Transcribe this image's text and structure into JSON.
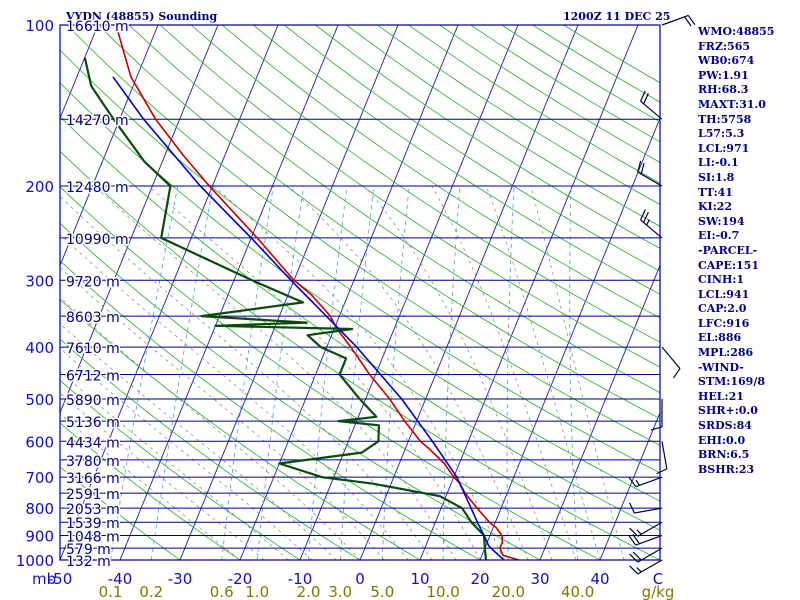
{
  "header": {
    "station": "VYDN (48855) Sounding",
    "time": "1200Z 11 DEC 25"
  },
  "indices": [
    "WMO:48855",
    "FRZ:565",
    "WB0:674",
    "PW:1.91",
    "RH:68.3",
    "MAXT:31.0",
    "TH:5758",
    "L57:5.3",
    "LCL:971",
    "LI:-0.1",
    "SI:1.8",
    "TT:41",
    "KI:22",
    "SW:194",
    "EI:-0.7",
    "-PARCEL-",
    "CAPE:151",
    "CINH:1",
    "LCL:941",
    "CAP:2.0",
    "LFC:916",
    "EL:886",
    "MPL:286",
    "-WIND-",
    "STM:169/8",
    "HEL:21",
    "SHR+:0.0",
    "SRDS:84",
    "EHI:0.0",
    "BRN:6.5",
    "BSHR:23"
  ],
  "chart_data": {
    "type": "line",
    "title": "VYDN (48855) Sounding",
    "subtitle": "1200Z 11 DEC 25",
    "xlabel": "",
    "ylabel": "mb",
    "ylim": [
      1000,
      100
    ],
    "y_scale": "log",
    "xlim": [
      -50,
      50
    ],
    "pressure_ticks": [
      100,
      200,
      300,
      400,
      500,
      600,
      700,
      800,
      900,
      1000
    ],
    "temperature_ticks": [
      "-50",
      "-40",
      "-30",
      "-20",
      "-10",
      "0",
      "10",
      "20",
      "30",
      "40",
      "C"
    ],
    "temperature_tick_values": [
      -50,
      -40,
      -30,
      -20,
      -10,
      0,
      10,
      20,
      30,
      40
    ],
    "mixing_ratio_labels": [
      "0.1",
      "0.2",
      "0.6",
      "1.0",
      "2.0",
      "3.0",
      "5.0",
      "10.0",
      "20.0",
      "40.0",
      "g/kg"
    ],
    "mixing_ratio_values": [
      0.1,
      0.2,
      0.6,
      1.0,
      2.0,
      3.0,
      5.0,
      10.0,
      20.0,
      40.0
    ],
    "height_labels": [
      {
        "p": 100,
        "text": "16610 m"
      },
      {
        "p": 150,
        "text": "14270 m"
      },
      {
        "p": 200,
        "text": "12480 m"
      },
      {
        "p": 250,
        "text": "10990 m"
      },
      {
        "p": 300,
        "text": "9720 m"
      },
      {
        "p": 350,
        "text": "8603 m"
      },
      {
        "p": 400,
        "text": "7610 m"
      },
      {
        "p": 450,
        "text": "6712 m"
      },
      {
        "p": 500,
        "text": "5890 m"
      },
      {
        "p": 550,
        "text": "5136 m"
      },
      {
        "p": 600,
        "text": "4434 m"
      },
      {
        "p": 650,
        "text": "3780 m"
      },
      {
        "p": 700,
        "text": "3166 m"
      },
      {
        "p": 750,
        "text": "2591 m"
      },
      {
        "p": 800,
        "text": "2053 m"
      },
      {
        "p": 850,
        "text": "1539 m"
      },
      {
        "p": 900,
        "text": "1048 m"
      },
      {
        "p": 950,
        "text": "579 m"
      },
      {
        "p": 1000,
        "text": "132 m"
      }
    ],
    "series": [
      {
        "name": "",
        "color": "#c00000",
        "points": [
          {
            "p": 1000,
            "t": 26.5
          },
          {
            "p": 980,
            "t": 23.5
          },
          {
            "p": 950,
            "t": 22.5
          },
          {
            "p": 925,
            "t": 22.5
          },
          {
            "p": 900,
            "t": 22.0
          },
          {
            "p": 870,
            "t": 20.5
          },
          {
            "p": 850,
            "t": 19.0
          },
          {
            "p": 800,
            "t": 16.0
          },
          {
            "p": 750,
            "t": 13.0
          },
          {
            "p": 720,
            "t": 11.5
          },
          {
            "p": 700,
            "t": 10.0
          },
          {
            "p": 660,
            "t": 7.5
          },
          {
            "p": 620,
            "t": 4.0
          },
          {
            "p": 600,
            "t": 2.0
          },
          {
            "p": 550,
            "t": -2.0
          },
          {
            "p": 500,
            "t": -6.0
          },
          {
            "p": 450,
            "t": -11.0
          },
          {
            "p": 400,
            "t": -16.0
          },
          {
            "p": 370,
            "t": -19.5
          },
          {
            "p": 350,
            "t": -21.5
          },
          {
            "p": 320,
            "t": -26.0
          },
          {
            "p": 300,
            "t": -30.0
          },
          {
            "p": 250,
            "t": -39.0
          },
          {
            "p": 200,
            "t": -50.5
          },
          {
            "p": 175,
            "t": -57.0
          },
          {
            "p": 150,
            "t": -64.0
          },
          {
            "p": 125,
            "t": -71.0
          },
          {
            "p": 100,
            "t": -77.0
          }
        ]
      },
      {
        "name": "",
        "color": "#0a4a0a",
        "points": [
          {
            "p": 1000,
            "t": 21.0
          },
          {
            "p": 950,
            "t": 20.0
          },
          {
            "p": 900,
            "t": 19.0
          },
          {
            "p": 850,
            "t": 16.0
          },
          {
            "p": 800,
            "t": 13.5
          },
          {
            "p": 760,
            "t": 9.0
          },
          {
            "p": 720,
            "t": -3.0
          },
          {
            "p": 700,
            "t": -12.0
          },
          {
            "p": 660,
            "t": -20.0
          },
          {
            "p": 630,
            "t": -7.0
          },
          {
            "p": 600,
            "t": -5.0
          },
          {
            "p": 560,
            "t": -6.0
          },
          {
            "p": 550,
            "t": -13.0
          },
          {
            "p": 540,
            "t": -7.0
          },
          {
            "p": 500,
            "t": -11.0
          },
          {
            "p": 450,
            "t": -16.0
          },
          {
            "p": 420,
            "t": -16.0
          },
          {
            "p": 400,
            "t": -21.0
          },
          {
            "p": 380,
            "t": -24.0
          },
          {
            "p": 370,
            "t": -17.0
          },
          {
            "p": 365,
            "t": -40.0
          },
          {
            "p": 360,
            "t": -25.0
          },
          {
            "p": 350,
            "t": -43.0
          },
          {
            "p": 330,
            "t": -27.0
          },
          {
            "p": 300,
            "t": -37.0
          },
          {
            "p": 250,
            "t": -55.0
          },
          {
            "p": 200,
            "t": -57.0
          },
          {
            "p": 180,
            "t": -63.0
          },
          {
            "p": 150,
            "t": -71.0
          },
          {
            "p": 130,
            "t": -77.0
          },
          {
            "p": 115,
            "t": -80.0
          }
        ]
      },
      {
        "name": "",
        "color": "#0000c0",
        "points": [
          {
            "p": 1000,
            "t": 24.0
          },
          {
            "p": 950,
            "t": 21.0
          },
          {
            "p": 941,
            "t": 20.5
          },
          {
            "p": 900,
            "t": 19.0
          },
          {
            "p": 850,
            "t": 17.0
          },
          {
            "p": 800,
            "t": 15.0
          },
          {
            "p": 700,
            "t": 10.5
          },
          {
            "p": 600,
            "t": 4.0
          },
          {
            "p": 500,
            "t": -4.0
          },
          {
            "p": 400,
            "t": -15.0
          },
          {
            "p": 300,
            "t": -30.5
          },
          {
            "p": 250,
            "t": -40.0
          },
          {
            "p": 200,
            "t": -52.0
          },
          {
            "p": 150,
            "t": -66.0
          },
          {
            "p": 125,
            "t": -74.0
          }
        ]
      }
    ],
    "wind_barbs": [
      {
        "p": 1000,
        "dir": 240,
        "kt": 15
      },
      {
        "p": 950,
        "dir": 240,
        "kt": 20
      },
      {
        "p": 900,
        "dir": 250,
        "kt": 20
      },
      {
        "p": 850,
        "dir": 240,
        "kt": 15
      },
      {
        "p": 800,
        "dir": 260,
        "kt": 10
      },
      {
        "p": 700,
        "dir": 250,
        "kt": 15
      },
      {
        "p": 600,
        "dir": 170,
        "kt": 10
      },
      {
        "p": 500,
        "dir": 180,
        "kt": 10
      },
      {
        "p": 400,
        "dir": 140,
        "kt": 10
      },
      {
        "p": 250,
        "dir": 310,
        "kt": 25
      },
      {
        "p": 200,
        "dir": 300,
        "kt": 20
      },
      {
        "p": 150,
        "dir": 310,
        "kt": 20
      },
      {
        "p": 100,
        "dir": 70,
        "kt": 20
      }
    ],
    "colors": {
      "frame": "#000080",
      "isobar": "#000080",
      "isotherm": "#1c1cb0",
      "dry_adiabat": "#22b022",
      "moist_adiabat": "#808080",
      "mixing_ratio": "#4aa0e0",
      "axis_labels": "#1010c0",
      "mixing_labels": "#7a7a00"
    }
  }
}
